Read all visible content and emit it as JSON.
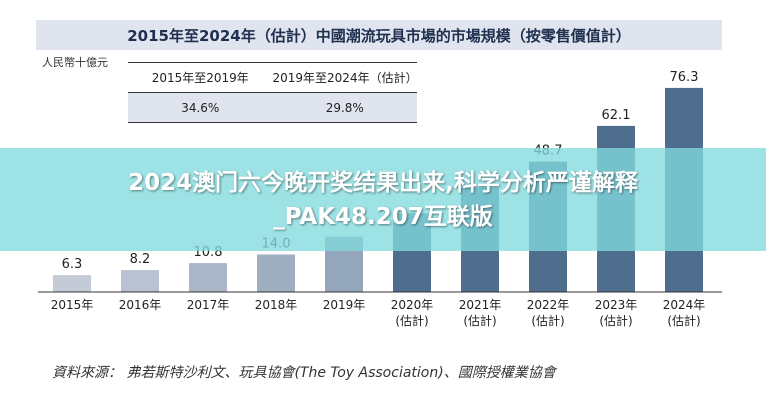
{
  "title": "2015年至2024年（估計）中國潮流玩具市場的市場規模（按零售價值計）",
  "unit_label": "人民幣十億元",
  "cagr_table": {
    "headers": [
      "2015年至2019年",
      "2019年至2024年（估計）"
    ],
    "values": [
      "34.6%",
      "29.8%"
    ]
  },
  "chart_data": {
    "type": "bar",
    "title": "2015年至2024年（估計）中國潮流玩具市場的市場規模（按零售價值計）",
    "ylabel": "人民幣十億元",
    "xlabel": "",
    "categories": [
      {
        "year": "2015年",
        "note": ""
      },
      {
        "year": "2016年",
        "note": ""
      },
      {
        "year": "2017年",
        "note": ""
      },
      {
        "year": "2018年",
        "note": ""
      },
      {
        "year": "2019年",
        "note": ""
      },
      {
        "year": "2020年",
        "note": "(估計)"
      },
      {
        "year": "2021年",
        "note": "(估計)"
      },
      {
        "year": "2022年",
        "note": "(估計)"
      },
      {
        "year": "2023年",
        "note": "(估計)"
      },
      {
        "year": "2024年",
        "note": "(估計)"
      }
    ],
    "values": [
      6.3,
      8.2,
      10.8,
      14.0,
      20.7,
      29.4,
      39.0,
      48.7,
      62.1,
      76.3
    ],
    "value_labels": [
      "6.3",
      "8.2",
      "10.8",
      "14.0",
      "",
      "",
      "",
      "48.7",
      "62.1",
      "76.3"
    ],
    "ylim": [
      0,
      80
    ],
    "grid": false,
    "colors": {
      "actual": [
        "#c4cbd7",
        "#b8c2d1",
        "#aab6c7",
        "#9fadc1",
        "#94a6bc"
      ],
      "estimate": "#4f6d8d"
    }
  },
  "source": "資料來源： 弗若斯特沙利文、玩具協會(The Toy Association)、國際授權業協會",
  "banner": {
    "line1": "2024澳门六今晚开奖结果出来,科学分析严谨解释",
    "line2": "_PAK48.207互联版"
  }
}
